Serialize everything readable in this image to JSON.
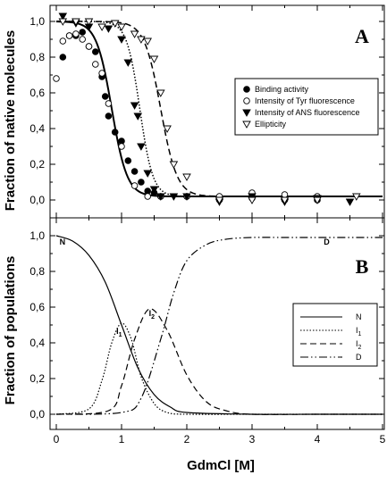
{
  "chart_data": [
    {
      "type": "scatter",
      "panel_letter": "A",
      "ylabel": "Fraction of native molecules",
      "xlim": [
        0,
        5
      ],
      "ylim": [
        -0.05,
        1.05
      ],
      "yticks": [
        "0,0",
        "0,2",
        "0,4",
        "0,6",
        "0,8",
        "1,0"
      ],
      "grid": false,
      "legend_position": "center-right",
      "series": [
        {
          "name": "Binding activity",
          "marker": "filled-circle",
          "x": [
            0.1,
            0.2,
            0.3,
            0.4,
            0.5,
            0.6,
            0.7,
            0.75,
            0.8,
            0.9,
            1.0,
            1.1,
            1.2,
            1.3,
            1.4,
            1.5,
            1.6,
            2.0,
            2.5,
            3.0,
            3.5,
            4.0
          ],
          "y": [
            0.8,
            0.92,
            0.92,
            0.94,
            0.86,
            0.83,
            0.69,
            0.58,
            0.47,
            0.38,
            0.33,
            0.22,
            0.16,
            0.1,
            0.05,
            0.04,
            0.02,
            0.02,
            0.0,
            0.01,
            0.0,
            0.0
          ]
        },
        {
          "name": "Intensity of Tyr fluorescence",
          "marker": "open-circle",
          "x": [
            0.0,
            0.1,
            0.2,
            0.3,
            0.4,
            0.5,
            0.6,
            0.7,
            0.8,
            1.0,
            1.2,
            1.4,
            1.6,
            2.0,
            2.5,
            3.0,
            3.5,
            4.0
          ],
          "y": [
            0.68,
            0.89,
            0.92,
            0.93,
            0.9,
            0.86,
            0.76,
            0.71,
            0.54,
            0.3,
            0.08,
            0.02,
            0.02,
            0.02,
            0.02,
            0.04,
            0.03,
            0.02
          ]
        },
        {
          "name": "Intensity of ANS fluorescence",
          "marker": "filled-triangle-down",
          "x": [
            0.1,
            0.3,
            0.5,
            0.8,
            1.0,
            1.1,
            1.2,
            1.25,
            1.3,
            1.4,
            1.5,
            1.6,
            1.8,
            2.0,
            2.5,
            3.0,
            3.5,
            4.0,
            4.5
          ],
          "y": [
            1.03,
            0.99,
            0.97,
            0.96,
            0.9,
            0.77,
            0.53,
            0.47,
            0.3,
            0.15,
            0.06,
            0.02,
            0.02,
            0.02,
            -0.01,
            0.02,
            -0.01,
            0.01,
            -0.01
          ]
        },
        {
          "name": "Ellipticity",
          "marker": "open-triangle-down",
          "x": [
            0.1,
            0.3,
            0.5,
            0.7,
            0.9,
            1.0,
            1.2,
            1.3,
            1.4,
            1.5,
            1.6,
            1.7,
            1.8,
            2.0,
            2.5,
            3.0,
            3.5,
            4.0,
            4.6
          ],
          "y": [
            1.0,
            1.0,
            1.0,
            0.97,
            0.99,
            0.97,
            0.93,
            0.9,
            0.89,
            0.79,
            0.6,
            0.4,
            0.2,
            0.13,
            0.0,
            0.0,
            0.0,
            0.0,
            0.02
          ]
        }
      ],
      "fit_curves": [
        {
          "style": "solid",
          "midpoint": 0.85,
          "slope": 8.5,
          "baseline": 0.02
        },
        {
          "style": "dotted",
          "midpoint": 1.28,
          "slope": 10,
          "baseline": 0.02
        },
        {
          "style": "dashed",
          "midpoint": 1.6,
          "slope": 8,
          "baseline": 0.02
        }
      ]
    },
    {
      "type": "line",
      "panel_letter": "B",
      "xlabel": "GdmCl [M]",
      "ylabel": "Fraction of populations",
      "xlim": [
        0,
        5
      ],
      "ylim": [
        -0.05,
        1.05
      ],
      "xticks": [
        "0",
        "1",
        "2",
        "3",
        "4",
        "5"
      ],
      "yticks": [
        "0,0",
        "0,2",
        "0,4",
        "0,6",
        "0,8",
        "1,0"
      ],
      "grid": false,
      "legend_position": "center-right",
      "series": [
        {
          "name": "N",
          "legend_main": "N",
          "legend_sub": "",
          "style": "solid",
          "x": [
            0,
            0.25,
            0.5,
            0.75,
            1.0,
            1.25,
            1.5,
            1.75,
            2.0,
            3.0,
            4.0,
            5.0
          ],
          "y": [
            1.0,
            0.97,
            0.89,
            0.74,
            0.5,
            0.26,
            0.11,
            0.04,
            0.01,
            0.0,
            0.0,
            0.0
          ]
        },
        {
          "name": "I1",
          "legend_main": "I",
          "legend_sub": "1",
          "style": "dotted",
          "x": [
            0,
            0.5,
            0.7,
            0.85,
            1.0,
            1.15,
            1.3,
            1.5,
            1.7,
            2.0,
            3.0,
            5.0
          ],
          "y": [
            0.0,
            0.03,
            0.19,
            0.4,
            0.51,
            0.42,
            0.21,
            0.06,
            0.01,
            0.0,
            0.0,
            0.0
          ]
        },
        {
          "name": "I2",
          "legend_main": "I",
          "legend_sub": "2",
          "style": "dashed",
          "x": [
            0,
            0.8,
            1.0,
            1.2,
            1.43,
            1.7,
            2.0,
            2.3,
            2.6,
            3.0,
            4.0,
            5.0
          ],
          "y": [
            0.0,
            0.02,
            0.16,
            0.42,
            0.59,
            0.47,
            0.22,
            0.07,
            0.02,
            0.0,
            0.0,
            0.0
          ]
        },
        {
          "name": "D",
          "legend_main": "D",
          "legend_sub": "",
          "style": "dash-dot-dot",
          "x": [
            0,
            1.0,
            1.3,
            1.6,
            1.8,
            2.0,
            2.3,
            2.6,
            3.0,
            3.5,
            4.0,
            5.0
          ],
          "y": [
            0.0,
            0.01,
            0.09,
            0.42,
            0.68,
            0.86,
            0.95,
            0.98,
            0.99,
            0.99,
            0.99,
            0.99
          ]
        }
      ],
      "curve_labels": [
        {
          "main": "N",
          "sub": "",
          "x": 0.05,
          "y": 0.95
        },
        {
          "main": "I",
          "sub": "1",
          "x": 0.92,
          "y": 0.45
        },
        {
          "main": "I",
          "sub": "2",
          "x": 1.42,
          "y": 0.55
        },
        {
          "main": "D",
          "sub": "",
          "x": 4.1,
          "y": 0.95
        }
      ]
    }
  ],
  "colors": {
    "ink": "#000000",
    "background": "#ffffff"
  }
}
